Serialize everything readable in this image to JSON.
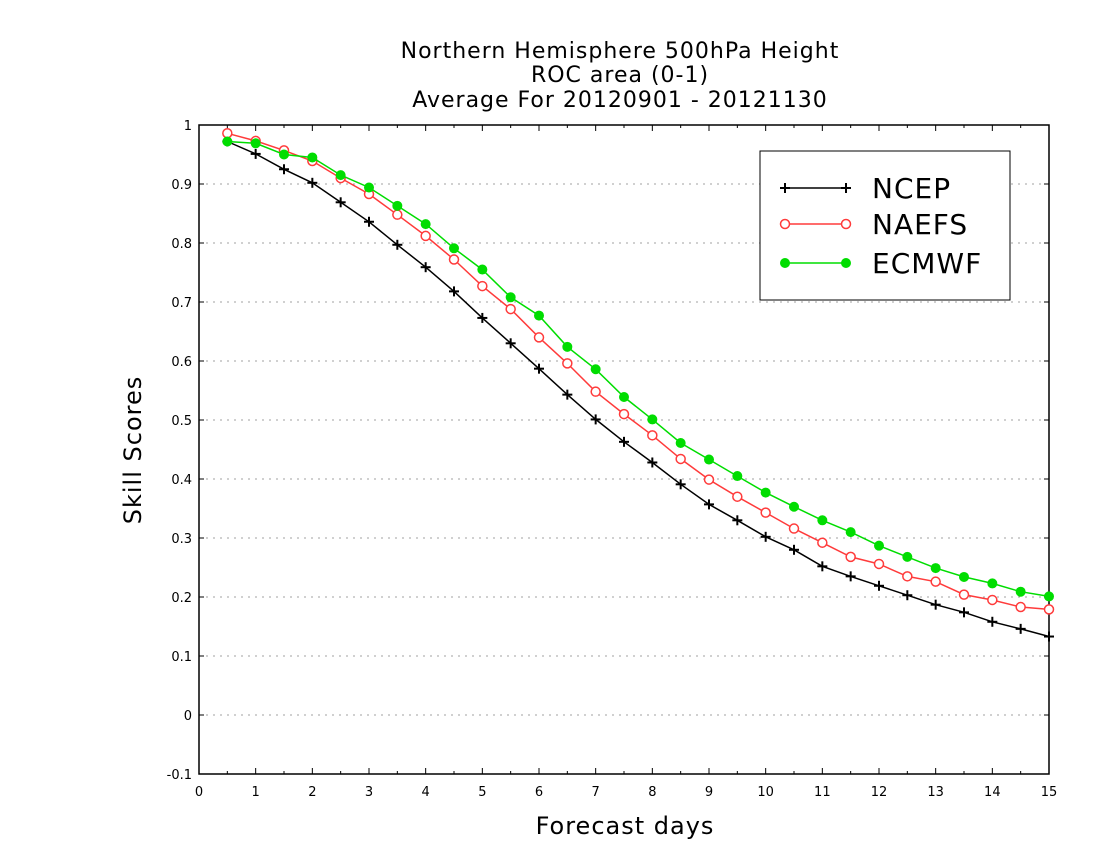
{
  "chart_data": {
    "type": "line",
    "title": [
      "Northern Hemisphere 500hPa Height",
      "ROC area (0-1)",
      "Average For 20120901 - 20121130"
    ],
    "xlabel": "Forecast days",
    "ylabel": "Skill Scores",
    "xlim": [
      0,
      15
    ],
    "ylim": [
      -0.1,
      1
    ],
    "xticks": [
      0,
      1,
      2,
      3,
      4,
      5,
      6,
      7,
      8,
      9,
      10,
      11,
      12,
      13,
      14,
      15
    ],
    "yticks": [
      -0.1,
      0,
      0.1,
      0.2,
      0.3,
      0.4,
      0.5,
      0.6,
      0.7,
      0.8,
      0.9,
      1
    ],
    "ytick_labels": [
      "-0.1",
      "0",
      "0.1",
      "0.2",
      "0.3",
      "0.4",
      "0.5",
      "0.6",
      "0.7",
      "0.8",
      "0.9",
      "1"
    ],
    "grid": true,
    "legend_position": "top-right",
    "x": [
      0.5,
      1.0,
      1.5,
      2.0,
      2.5,
      3.0,
      3.5,
      4.0,
      4.5,
      5.0,
      5.5,
      6.0,
      6.5,
      7.0,
      7.5,
      8.0,
      8.5,
      9.0,
      9.5,
      10.0,
      10.5,
      11.0,
      11.5,
      12.0,
      12.5,
      13.0,
      13.5,
      14.0,
      14.5,
      15.0
    ],
    "series": [
      {
        "name": "NCEP",
        "color": "#000000",
        "marker": "plus",
        "values": [
          0.972,
          0.951,
          0.925,
          0.902,
          0.869,
          0.836,
          0.797,
          0.759,
          0.718,
          0.673,
          0.63,
          0.587,
          0.543,
          0.501,
          0.463,
          0.428,
          0.391,
          0.357,
          0.33,
          0.302,
          0.28,
          0.252,
          0.235,
          0.219,
          0.203,
          0.187,
          0.174,
          0.158,
          0.146,
          0.133
        ]
      },
      {
        "name": "NAEFS",
        "color": "#ff3b3b",
        "marker": "open-circle",
        "values": [
          0.986,
          0.973,
          0.957,
          0.939,
          0.91,
          0.883,
          0.848,
          0.812,
          0.772,
          0.727,
          0.688,
          0.64,
          0.596,
          0.548,
          0.51,
          0.474,
          0.434,
          0.399,
          0.37,
          0.343,
          0.316,
          0.292,
          0.268,
          0.256,
          0.235,
          0.226,
          0.204,
          0.195,
          0.183,
          0.179
        ]
      },
      {
        "name": "ECMWF",
        "color": "#00dd00",
        "marker": "filled-circle",
        "values": [
          0.972,
          0.969,
          0.95,
          0.945,
          0.915,
          0.894,
          0.863,
          0.832,
          0.791,
          0.755,
          0.708,
          0.677,
          0.624,
          0.586,
          0.539,
          0.501,
          0.461,
          0.433,
          0.405,
          0.377,
          0.353,
          0.33,
          0.31,
          0.287,
          0.268,
          0.249,
          0.234,
          0.223,
          0.209,
          0.201
        ]
      }
    ]
  }
}
